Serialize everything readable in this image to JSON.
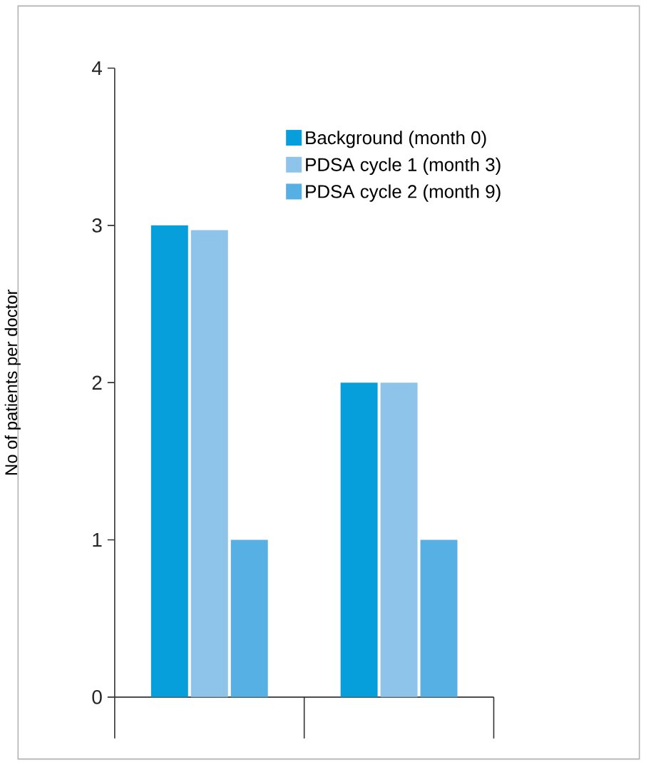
{
  "chart_data": {
    "type": "bar",
    "categories": [
      null,
      null
    ],
    "ylabel": "No of patients per doctor",
    "ylim": [
      0,
      4
    ],
    "yticks": [
      0,
      1,
      2,
      3,
      4
    ],
    "tick_labels": "y",
    "legend": "top right",
    "grid": false,
    "series": [
      {
        "name": "Background (month 0)",
        "color": "#069fdc",
        "values": [
          3.0,
          2.0
        ]
      },
      {
        "name": "PDSA cycle 1 (month 3)",
        "color": "#8ec4ea",
        "values": [
          2.97,
          2.0
        ]
      },
      {
        "name": "PDSA cycle 2 (month 9)",
        "color": "#57b0e3",
        "values": [
          1.0,
          1.0
        ]
      }
    ]
  }
}
